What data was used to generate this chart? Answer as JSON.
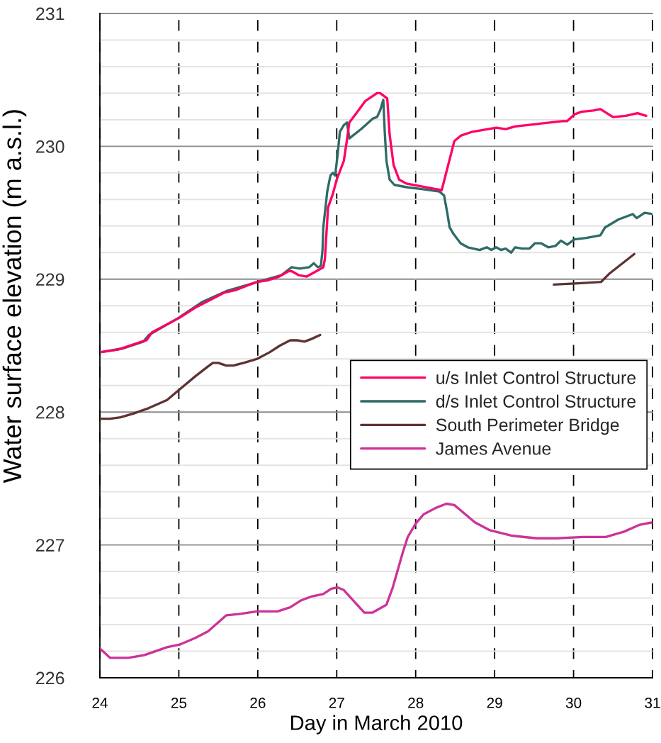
{
  "chart_data": {
    "type": "line",
    "xlabel": "Day in March 2010",
    "ylabel": "Water surface elevation (m a.s.l.)",
    "xlim": [
      24,
      31
    ],
    "ylim": [
      226,
      231
    ],
    "xticks": [
      24,
      25,
      26,
      27,
      28,
      29,
      30,
      31
    ],
    "yticks": [
      226,
      {
        "value": 226.2,
        "label": null
      },
      {
        "value": 226.4,
        "label": null
      },
      {
        "value": 226.6,
        "label": null
      },
      {
        "value": 226.8,
        "label": null
      },
      227,
      {
        "value": 227.2,
        "label": null
      },
      {
        "value": 227.4,
        "label": null
      },
      {
        "value": 227.6,
        "label": null
      },
      {
        "value": 227.8,
        "label": null
      },
      228,
      {
        "value": 228.2,
        "label": null
      },
      {
        "value": 228.4,
        "label": null
      },
      {
        "value": 228.6,
        "label": null
      },
      {
        "value": 228.8,
        "label": null
      },
      229,
      {
        "value": 229.2,
        "label": null
      },
      {
        "value": 229.4,
        "label": null
      },
      {
        "value": 229.6,
        "label": null
      },
      {
        "value": 229.8,
        "label": null
      },
      230,
      {
        "value": 230.2,
        "label": null
      },
      {
        "value": 230.4,
        "label": null
      },
      {
        "value": 230.6,
        "label": null
      },
      {
        "value": 230.8,
        "label": null
      },
      231
    ],
    "grid": true,
    "legend": "right",
    "line_style": "solid",
    "series": [
      {
        "name": "u/s Inlet Control Structure",
        "color": "#ff0066",
        "x": [
          24.0,
          24.23,
          24.53,
          24.59,
          24.66,
          25.01,
          25.22,
          25.58,
          25.73,
          25.99,
          26.12,
          26.27,
          26.39,
          26.43,
          26.52,
          26.62,
          26.71,
          26.83,
          26.85,
          26.89,
          26.95,
          27.0,
          27.09,
          27.13,
          27.16,
          27.25,
          27.36,
          27.51,
          27.55,
          27.64,
          27.67,
          27.72,
          27.79,
          27.88,
          28.06,
          28.24,
          28.33,
          28.49,
          28.57,
          28.72,
          29.02,
          29.14,
          29.26,
          29.56,
          29.86,
          29.92,
          30.01,
          30.1,
          30.25,
          30.34,
          30.5,
          30.66,
          30.81,
          30.92
        ],
        "values": [
          228.45,
          228.47,
          228.53,
          228.54,
          228.6,
          228.71,
          228.79,
          228.9,
          228.92,
          228.98,
          228.99,
          229.02,
          229.06,
          229.06,
          229.03,
          229.02,
          229.05,
          229.09,
          229.15,
          229.54,
          229.64,
          229.75,
          229.89,
          230.05,
          230.18,
          230.25,
          230.34,
          230.4,
          230.4,
          230.36,
          230.09,
          229.86,
          229.75,
          229.72,
          229.7,
          229.68,
          229.67,
          230.04,
          230.08,
          230.11,
          230.14,
          230.13,
          230.15,
          230.17,
          230.19,
          230.19,
          230.24,
          230.26,
          230.27,
          230.28,
          230.22,
          230.23,
          230.25,
          230.23
        ]
      },
      {
        "name": "d/s Inlet Control Structure",
        "color": "#2f6b67",
        "x": [
          24.0,
          24.3,
          24.55,
          24.62,
          25.0,
          25.3,
          25.6,
          26.0,
          26.3,
          26.43,
          26.53,
          26.65,
          26.71,
          26.76,
          26.8,
          26.82,
          26.83,
          26.88,
          26.92,
          26.95,
          26.98,
          27.01,
          27.04,
          27.09,
          27.13,
          27.16,
          27.31,
          27.46,
          27.51,
          27.55,
          27.59,
          27.61,
          27.63,
          27.67,
          27.73,
          27.91,
          28.06,
          28.3,
          28.36,
          28.4,
          28.43,
          28.48,
          28.57,
          28.66,
          28.81,
          28.9,
          28.96,
          29.02,
          29.08,
          29.14,
          29.21,
          29.26,
          29.35,
          29.44,
          29.51,
          29.59,
          29.68,
          29.77,
          29.84,
          29.92,
          30.01,
          30.16,
          30.34,
          30.4,
          30.57,
          30.75,
          30.8,
          30.9,
          31.0
        ],
        "values": [
          228.45,
          228.48,
          228.53,
          228.58,
          228.71,
          228.83,
          228.91,
          228.98,
          229.03,
          229.09,
          229.08,
          229.09,
          229.12,
          229.09,
          229.1,
          229.22,
          229.39,
          229.66,
          229.78,
          229.8,
          229.78,
          229.93,
          230.11,
          230.16,
          230.18,
          230.06,
          230.13,
          230.21,
          230.22,
          230.27,
          230.35,
          230.09,
          229.89,
          229.75,
          229.71,
          229.69,
          229.68,
          229.66,
          229.63,
          229.5,
          229.39,
          229.34,
          229.27,
          229.24,
          229.22,
          229.24,
          229.22,
          229.24,
          229.22,
          229.23,
          229.2,
          229.24,
          229.23,
          229.23,
          229.27,
          229.27,
          229.24,
          229.25,
          229.29,
          229.26,
          229.3,
          229.31,
          229.33,
          229.39,
          229.45,
          229.49,
          229.46,
          229.5,
          229.49
        ]
      },
      {
        "name": "South Perimeter Bridge",
        "color": "#5e3333",
        "x": [
          24.0,
          24.13,
          24.26,
          24.43,
          24.62,
          24.85,
          25.01,
          25.21,
          25.34,
          25.43,
          25.5,
          25.6,
          25.69,
          25.82,
          25.99,
          26.15,
          26.28,
          26.41,
          26.5,
          26.59,
          26.68,
          26.79,
          28.3,
          29.75,
          30.1,
          30.35,
          30.45,
          30.77
        ],
        "values": [
          227.95,
          227.95,
          227.96,
          227.99,
          228.03,
          228.09,
          228.17,
          228.27,
          228.33,
          228.37,
          228.37,
          228.35,
          228.35,
          228.37,
          228.4,
          228.45,
          228.5,
          228.54,
          228.54,
          228.53,
          228.55,
          228.58,
          null,
          228.96,
          228.97,
          228.98,
          229.04,
          229.19
        ]
      },
      {
        "name": "James Avenue",
        "color": "#cc3399",
        "x": [
          24.0,
          24.13,
          24.36,
          24.56,
          24.85,
          25.01,
          25.21,
          25.37,
          25.6,
          25.76,
          25.99,
          26.25,
          26.41,
          26.54,
          26.67,
          26.83,
          26.93,
          27.01,
          27.09,
          27.35,
          27.45,
          27.63,
          27.71,
          27.84,
          27.9,
          28.0,
          28.1,
          28.26,
          28.39,
          28.49,
          28.59,
          28.75,
          28.94,
          29.21,
          29.53,
          29.79,
          30.12,
          30.41,
          30.64,
          30.83,
          31.0
        ],
        "values": [
          226.22,
          226.15,
          226.15,
          226.17,
          226.23,
          226.25,
          226.3,
          226.35,
          226.47,
          226.48,
          226.5,
          226.5,
          226.53,
          226.58,
          226.61,
          226.63,
          226.67,
          226.68,
          226.66,
          226.49,
          226.49,
          226.55,
          226.68,
          226.95,
          227.06,
          227.16,
          227.23,
          227.28,
          227.31,
          227.3,
          227.25,
          227.17,
          227.11,
          227.07,
          227.05,
          227.05,
          227.06,
          227.06,
          227.1,
          227.15,
          227.17
        ]
      }
    ]
  }
}
